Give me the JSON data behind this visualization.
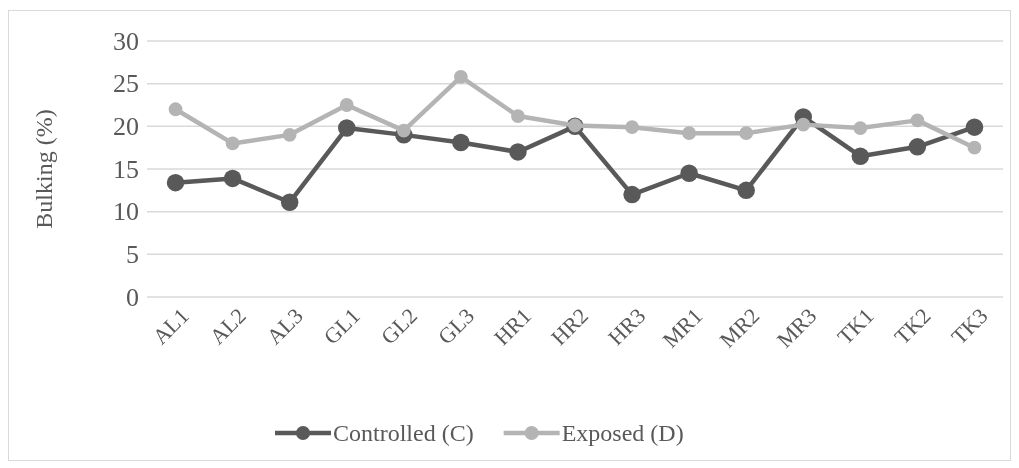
{
  "chart_data": {
    "type": "line",
    "ylabel": "Bulking (%)",
    "categories": [
      "AL1",
      "AL2",
      "AL3",
      "GL1",
      "GL2",
      "GL3",
      "HR1",
      "HR2",
      "HR3",
      "MR1",
      "MR2",
      "MR3",
      "TK1",
      "TK2",
      "TK3"
    ],
    "series": [
      {
        "name": "Controlled (C)",
        "color": "#595959",
        "values": [
          13.4,
          13.9,
          11.1,
          19.8,
          19.0,
          18.1,
          17.0,
          20.0,
          12.0,
          14.5,
          12.5,
          21.1,
          16.5,
          17.6,
          19.9
        ]
      },
      {
        "name": "Exposed (D)",
        "color": "#b4b4b4",
        "values": [
          22.0,
          18.0,
          19.0,
          22.5,
          19.5,
          25.8,
          21.2,
          20.1,
          19.9,
          19.2,
          19.2,
          20.2,
          19.8,
          20.7,
          17.5
        ]
      }
    ],
    "ylim": [
      0,
      30
    ],
    "yticks": [
      0,
      5,
      10,
      15,
      20,
      25,
      30
    ],
    "grid": "y",
    "legend": "bottom",
    "marker": "circle",
    "line_style": "solid"
  }
}
